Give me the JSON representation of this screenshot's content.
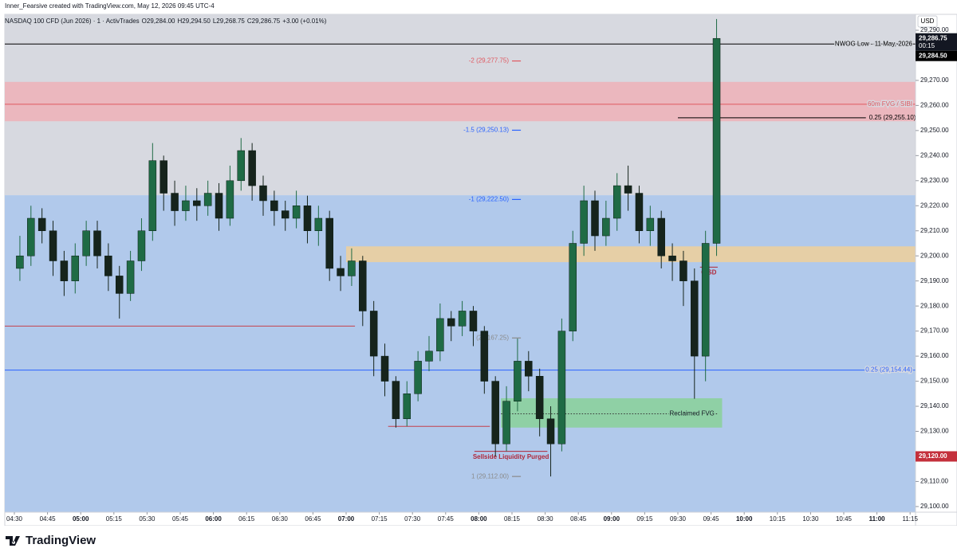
{
  "header": {
    "credit": "Inner_Fearsive created with TradingView.com, May 12, 2026 09:45 UTC-4",
    "symbol": "NASDAQ 100 CFD (Jun 2026) · 1 · ActivTrades",
    "ohlc": [
      "O29,284.00",
      "H29,294.50",
      "L29,268.75",
      "C29,286.75",
      "+3.00 (+0.01%)"
    ],
    "currency": "USD",
    "brand": "TradingView"
  },
  "chart_data": {
    "type": "candlestick",
    "up_color": "#1f6b45",
    "down_color": "#16241c",
    "x": [
      "04:30",
      "04:35",
      "04:40",
      "04:45",
      "04:50",
      "04:55",
      "05:00",
      "05:05",
      "05:10",
      "05:15",
      "05:20",
      "05:25",
      "05:30",
      "05:35",
      "05:40",
      "05:45",
      "05:50",
      "05:55",
      "06:00",
      "06:05",
      "06:10",
      "06:15",
      "06:20",
      "06:25",
      "06:30",
      "06:35",
      "06:40",
      "06:45",
      "06:50",
      "06:55",
      "07:00",
      "07:05",
      "07:10",
      "07:15",
      "07:20",
      "07:25",
      "07:30",
      "07:35",
      "07:40",
      "07:45",
      "07:50",
      "07:55",
      "08:00",
      "08:05",
      "08:10",
      "08:15",
      "08:20",
      "08:25",
      "08:30",
      "08:35",
      "08:40",
      "08:45",
      "08:50",
      "08:55",
      "09:00",
      "09:05",
      "09:10",
      "09:15",
      "09:20",
      "09:25",
      "09:30",
      "09:35",
      "09:40",
      "09:45"
    ],
    "open": [
      29195,
      29200,
      29215,
      29210,
      29198,
      29190,
      29200,
      29210,
      29200,
      29192,
      29185,
      29198,
      29210,
      29238,
      29225,
      29218,
      29222,
      29220,
      29225,
      29215,
      29230,
      29242,
      29228,
      29222,
      29218,
      29215,
      29220,
      29210,
      29215,
      29195,
      29192,
      29198,
      29178,
      29160,
      29150,
      29135,
      29145,
      29158,
      29162,
      29175,
      29172,
      29178,
      29170,
      29150,
      29125,
      29142,
      29158,
      29152,
      29135,
      29125,
      29170,
      29205,
      29222,
      29208,
      29215,
      29228,
      29225,
      29210,
      29215,
      29200,
      29198,
      29190,
      29160,
      29205
    ],
    "high": [
      29208,
      29220,
      29219,
      29214,
      29202,
      29205,
      29214,
      29214,
      29205,
      29196,
      29202,
      29215,
      29245,
      29240,
      29230,
      29228,
      29227,
      29230,
      29229,
      29236,
      29247,
      29245,
      29232,
      29226,
      29222,
      29226,
      29224,
      29220,
      29218,
      29200,
      29203,
      29200,
      29182,
      29165,
      29152,
      29150,
      29162,
      29168,
      29181,
      29178,
      29182,
      29180,
      29172,
      29152,
      29148,
      29167,
      29162,
      29155,
      29140,
      29175,
      29210,
      29228,
      29226,
      29222,
      29233,
      29236,
      29228,
      29220,
      29218,
      29205,
      29202,
      29195,
      29210,
      29294.5
    ],
    "low": [
      29190,
      29196,
      29205,
      29192,
      29184,
      29185,
      29196,
      29195,
      29186,
      29175,
      29182,
      29194,
      29206,
      29218,
      29212,
      29214,
      29214,
      29216,
      29210,
      29212,
      29226,
      29222,
      29216,
      29212,
      29210,
      29211,
      29205,
      29204,
      29190,
      29186,
      29188,
      29172,
      29152,
      29144,
      29131.5,
      29132,
      29142,
      29154,
      29158,
      29166,
      29168,
      29164,
      29145,
      29120,
      29122,
      29138,
      29146,
      29128,
      29112,
      29122,
      29166,
      29200,
      29202,
      29204,
      29210,
      29218,
      29205,
      29204,
      29195,
      29190,
      29180,
      29143,
      29150,
      29200
    ],
    "close": [
      29200,
      29215,
      29210,
      29198,
      29190,
      29200,
      29210,
      29200,
      29192,
      29185,
      29198,
      29210,
      29238,
      29225,
      29218,
      29222,
      29220,
      29225,
      29215,
      29230,
      29242,
      29228,
      29222,
      29218,
      29215,
      29220,
      29210,
      29215,
      29195,
      29192,
      29198,
      29178,
      29160,
      29150,
      29135,
      29145,
      29158,
      29162,
      29175,
      29172,
      29178,
      29170,
      29150,
      29125,
      29142,
      29158,
      29152,
      29135,
      29125,
      29170,
      29205,
      29222,
      29208,
      29215,
      29228,
      29225,
      29210,
      29215,
      29200,
      29198,
      29190,
      29160,
      29205,
      29286.75
    ],
    "ylim": [
      29097.75,
      29296.35
    ],
    "yticks": [
      {
        "value": 29290,
        "label": "29,290.00"
      },
      {
        "value": 29280,
        "label": "29,280.00"
      },
      {
        "value": 29270,
        "label": "29,270.00"
      },
      {
        "value": 29260,
        "label": "29,260.00"
      },
      {
        "value": 29250,
        "label": "29,250.00"
      },
      {
        "value": 29240,
        "label": "29,240.00"
      },
      {
        "value": 29230,
        "label": "29,230.00"
      },
      {
        "value": 29220,
        "label": "29,220.00"
      },
      {
        "value": 29210,
        "label": "29,210.00"
      },
      {
        "value": 29200,
        "label": "29,200.00"
      },
      {
        "value": 29190,
        "label": "29,190.00"
      },
      {
        "value": 29180,
        "label": "29,180.00"
      },
      {
        "value": 29170,
        "label": "29,170.00"
      },
      {
        "value": 29160,
        "label": "29,160.00"
      },
      {
        "value": 29150,
        "label": "29,150.00"
      },
      {
        "value": 29140,
        "label": "29,140.00"
      },
      {
        "value": 29130,
        "label": "29,130.00"
      },
      {
        "value": 29120,
        "label": "29,120.00"
      },
      {
        "value": 29110,
        "label": "29,110.00"
      },
      {
        "value": 29100,
        "label": "29,100.00"
      }
    ],
    "xticks": [
      "04:30",
      "04:45",
      "05:00",
      "05:15",
      "05:30",
      "05:45",
      "06:00",
      "06:15",
      "06:30",
      "06:45",
      "07:00",
      "07:15",
      "07:30",
      "07:45",
      "08:00",
      "08:15",
      "08:30",
      "08:45",
      "09:00",
      "09:15",
      "09:30",
      "09:45",
      "10:00",
      "10:15",
      "10:30",
      "10:45",
      "11:00",
      "11:15"
    ],
    "zones": [
      {
        "range": [
          29224.2,
          29296.35
        ],
        "color": "#d7d9e0"
      },
      {
        "range": [
          29097.75,
          29224.2
        ],
        "color": "#b1c9eb"
      },
      {
        "range": [
          29253.7,
          29269.4
        ],
        "color": "#ebb7be"
      },
      {
        "range": [
          29197.5,
          29203.8
        ],
        "color": "#e6cfa6",
        "start": "07:00"
      },
      {
        "range": [
          29131.5,
          29143.2
        ],
        "color": "#8fd0a5",
        "start": "08:10",
        "end": "09:50"
      }
    ],
    "lines": [
      {
        "price": 29284.5,
        "color": "#000000",
        "kind": "level",
        "label": "NWOG Low - 11 May, 2026"
      },
      {
        "price": 29260.5,
        "color": "#e0575f",
        "kind": "level",
        "label": "60m FVG / SIBI"
      },
      {
        "price": 29255.1,
        "color": "#000000",
        "kind": "tag",
        "start": "09:30",
        "end": "10:55",
        "label": "0.25 (29,255.10)"
      },
      {
        "price": 29172,
        "color": "#c4404c",
        "kind": "level",
        "end": "07:04"
      },
      {
        "price": 29154.44,
        "color": "#2962ff",
        "kind": "level",
        "label": "0.25 (29,154.44)"
      },
      {
        "price": 29132,
        "color": "#c4404c",
        "kind": "level",
        "start": "07:19",
        "end": "08:05"
      },
      {
        "price": 29122,
        "color": "#b0283a",
        "kind": "below",
        "start": "07:58",
        "end": "08:31",
        "label": "Sellside Liquidity Purged"
      },
      {
        "price": 29195.5,
        "color": "#b0283a",
        "kind": "below",
        "start": "09:40",
        "end": "09:48",
        "label": "CISD"
      },
      {
        "price": 29137,
        "color": "#333333",
        "kind": "inside",
        "style": "dotted",
        "start": "08:10",
        "end": "09:48",
        "label": "Reclaimed FVG"
      },
      {
        "price": 29277.75,
        "color": "#e0575f",
        "kind": "fib",
        "start": "08:15",
        "end": "08:19",
        "label": "-2 (29,277.75)"
      },
      {
        "price": 29250.13,
        "color": "#2962ff",
        "kind": "fib",
        "start": "08:15",
        "end": "08:19",
        "label": "-1.5 (29,250.13)"
      },
      {
        "price": 29222.5,
        "color": "#2962ff",
        "kind": "fib",
        "start": "08:15",
        "end": "08:19",
        "label": "-1 (29,222.50)"
      },
      {
        "price": 29167.25,
        "color": "#8a8a8a",
        "kind": "fib",
        "start": "08:15",
        "end": "08:19",
        "label": "(29,167.25)"
      },
      {
        "price": 29112,
        "color": "#8a8a8a",
        "kind": "fib",
        "start": "08:15",
        "end": "08:19",
        "label": "1 (29,112.00)"
      }
    ],
    "price_tags": [
      {
        "value": 29286.75,
        "label": "29,286.75",
        "sub": "00:15",
        "color": "#131722"
      },
      {
        "value": 29284.5,
        "label": "29,284.50",
        "color": "#000000"
      },
      {
        "value": 29120,
        "label": "29,120.00",
        "color": "#c4303c"
      }
    ]
  }
}
